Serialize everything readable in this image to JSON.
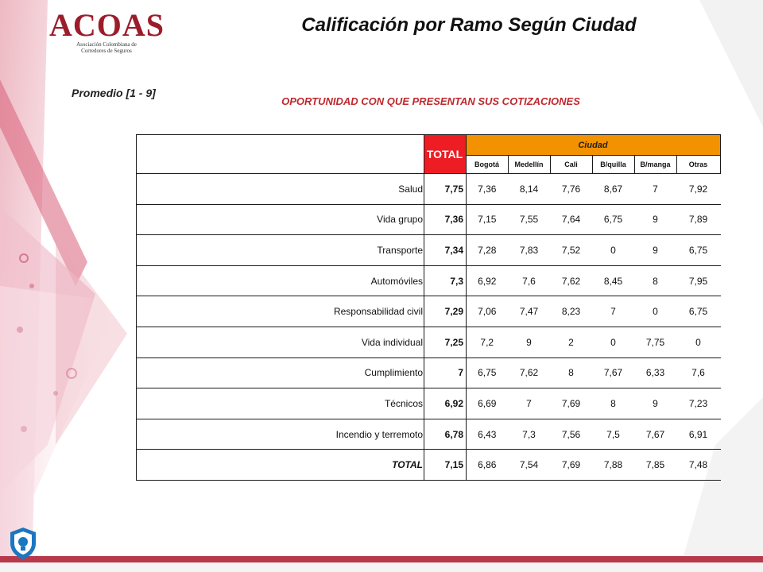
{
  "logo": {
    "main": "ACOAS",
    "sub": "Asociación Colombiana de Corredores de Seguros"
  },
  "slide_title": "Calificación por Ramo Según Ciudad",
  "scale_label": "Promedio  [1 - 9]",
  "question_title": "OPORTUNIDAD  CON QUE PRESENTAN  SUS COTIZACIONES",
  "table": {
    "total_header": "TOTAL",
    "group_header": "Ciudad",
    "city_headers": [
      "Bogotá",
      "Medellín",
      "Cali",
      "B/quilla",
      "B/manga",
      "Otras"
    ],
    "rows": [
      {
        "label": "Salud",
        "total": "7,75",
        "values": [
          "7,36",
          "8,14",
          "7,76",
          "8,67",
          "7",
          "7,92"
        ]
      },
      {
        "label": "Vida grupo",
        "total": "7,36",
        "values": [
          "7,15",
          "7,55",
          "7,64",
          "6,75",
          "9",
          "7,89"
        ]
      },
      {
        "label": "Transporte",
        "total": "7,34",
        "values": [
          "7,28",
          "7,83",
          "7,52",
          "0",
          "9",
          "6,75"
        ]
      },
      {
        "label": "Automóviles",
        "total": "7,3",
        "values": [
          "6,92",
          "7,6",
          "7,62",
          "8,45",
          "8",
          "7,95"
        ]
      },
      {
        "label": "Responsabilidad civil",
        "total": "7,29",
        "values": [
          "7,06",
          "7,47",
          "8,23",
          "7",
          "0",
          "6,75"
        ]
      },
      {
        "label": "Vida individual",
        "total": "7,25",
        "values": [
          "7,2",
          "9",
          "2",
          "0",
          "7,75",
          "0"
        ]
      },
      {
        "label": "Cumplimiento",
        "total": "7",
        "values": [
          "6,75",
          "7,62",
          "8",
          "7,67",
          "6,33",
          "7,6"
        ]
      },
      {
        "label": "Técnicos",
        "total": "6,92",
        "values": [
          "6,69",
          "7",
          "7,69",
          "8",
          "9",
          "7,23"
        ]
      },
      {
        "label": "Incendio y terremoto",
        "total": "6,78",
        "values": [
          "6,43",
          "7,3",
          "7,56",
          "7,5",
          "7,67",
          "6,91"
        ]
      }
    ],
    "final_row": {
      "label": "TOTAL",
      "total": "7,15",
      "values": [
        "6,86",
        "7,54",
        "7,69",
        "7,88",
        "7,85",
        "7,48"
      ]
    }
  },
  "colors": {
    "total_header_bg": "#ee1d24",
    "ciudad_header_bg": "#f39200",
    "question_title": "#c0282e",
    "brand": "#9b1d2a"
  }
}
